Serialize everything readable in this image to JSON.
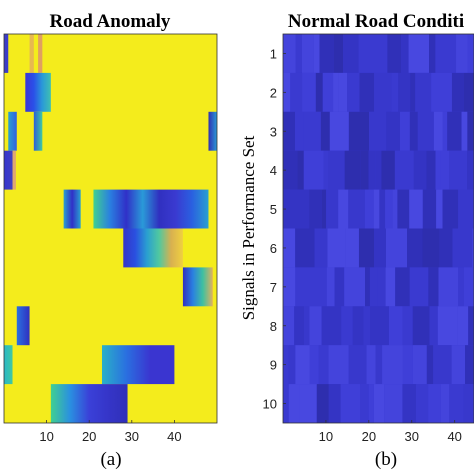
{
  "chart_data": [
    {
      "type": "heatmap",
      "title": "Road Anomaly",
      "caption": "(a)",
      "xlabel": "",
      "ylabel": "",
      "xlim": [
        0,
        50
      ],
      "ylim": [
        0.5,
        10.5
      ],
      "xticks": [
        10,
        20,
        30,
        40
      ],
      "yticks": [],
      "background_color": "#f4ec1c",
      "rows": [
        {
          "row": 1,
          "segments": [
            {
              "x0": 0,
              "x1": 1,
              "color": "#3c3cc8"
            }
          ],
          "streaks": [
            {
              "x0": 6,
              "x1": 7,
              "color": "#e8b850"
            },
            {
              "x0": 8,
              "x1": 9,
              "color": "#e0a060"
            }
          ]
        },
        {
          "row": 2,
          "segments": [
            {
              "x0": 5,
              "x1": 11,
              "gradient": [
                "#3a35d8",
                "#2a50e8",
                "#2a9ad8",
                "#40c0b0"
              ]
            }
          ]
        },
        {
          "row": 3,
          "segments": [
            {
              "x0": 1,
              "x1": 3,
              "gradient": [
                "#2aa0d0",
                "#3060e0"
              ]
            },
            {
              "x0": 7,
              "x1": 9,
              "gradient": [
                "#2a60d8",
                "#40c8a0"
              ]
            },
            {
              "x0": 48,
              "x1": 50,
              "gradient": [
                "#3030b0",
                "#2a9ad8"
              ]
            }
          ]
        },
        {
          "row": 4,
          "segments": [
            {
              "x0": 0,
              "x1": 2,
              "gradient": [
                "#3535d0",
                "#4040c0"
              ]
            }
          ],
          "streaks": [
            {
              "x0": 2,
              "x1": 2.8,
              "color": "#e0a870"
            }
          ]
        },
        {
          "row": 5,
          "segments": [
            {
              "x0": 14,
              "x1": 18,
              "gradient": [
                "#2aa0d0",
                "#3030c8",
                "#2aa0d0"
              ]
            },
            {
              "x0": 21,
              "x1": 48,
              "gradient": [
                "#40d090",
                "#2a80e0",
                "#3030c8",
                "#2a9ad8",
                "#3030c0",
                "#3a3ad0",
                "#2a60e0",
                "#2aa0d0"
              ]
            }
          ]
        },
        {
          "row": 6,
          "segments": [
            {
              "x0": 28,
              "x1": 42,
              "gradient": [
                "#3535c8",
                "#2a50e0",
                "#2aa0d0",
                "#50c8a0",
                "#d8b050",
                "#f0d040"
              ]
            }
          ]
        },
        {
          "row": 7,
          "segments": [
            {
              "x0": 42,
              "x1": 49,
              "gradient": [
                "#3030c0",
                "#2a80e0",
                "#40c0a0",
                "#e0b060"
              ]
            }
          ]
        },
        {
          "row": 8,
          "segments": [
            {
              "x0": 3,
              "x1": 6,
              "gradient": [
                "#2a70e0",
                "#3030c0"
              ]
            }
          ]
        },
        {
          "row": 9,
          "segments": [
            {
              "x0": 0,
              "x1": 2,
              "gradient": [
                "#2ab8c8",
                "#40c8a0"
              ]
            },
            {
              "x0": 23,
              "x1": 40,
              "gradient": [
                "#2ab0c8",
                "#2a70e0",
                "#3a35d0",
                "#3a35d0"
              ]
            }
          ]
        },
        {
          "row": 10,
          "segments": [
            {
              "x0": 11,
              "x1": 29,
              "gradient": [
                "#40d090",
                "#2a90e0",
                "#3a40d8",
                "#3535c8",
                "#3030b8"
              ]
            }
          ]
        }
      ]
    },
    {
      "type": "heatmap",
      "title": "Normal Road Conditi",
      "caption": "(b)",
      "xlabel": "",
      "ylabel": "Signals in Performance Set",
      "xlim": [
        0,
        50
      ],
      "ylim": [
        0.5,
        10.5
      ],
      "xticks": [
        10,
        20,
        30,
        40
      ],
      "yticks": [
        1,
        2,
        3,
        4,
        5,
        6,
        7,
        8,
        9,
        10
      ],
      "base_color": "#3a3ad0",
      "note_visible_range": "x from 0 to about 44 visible; plot cropped at right edge"
    }
  ]
}
